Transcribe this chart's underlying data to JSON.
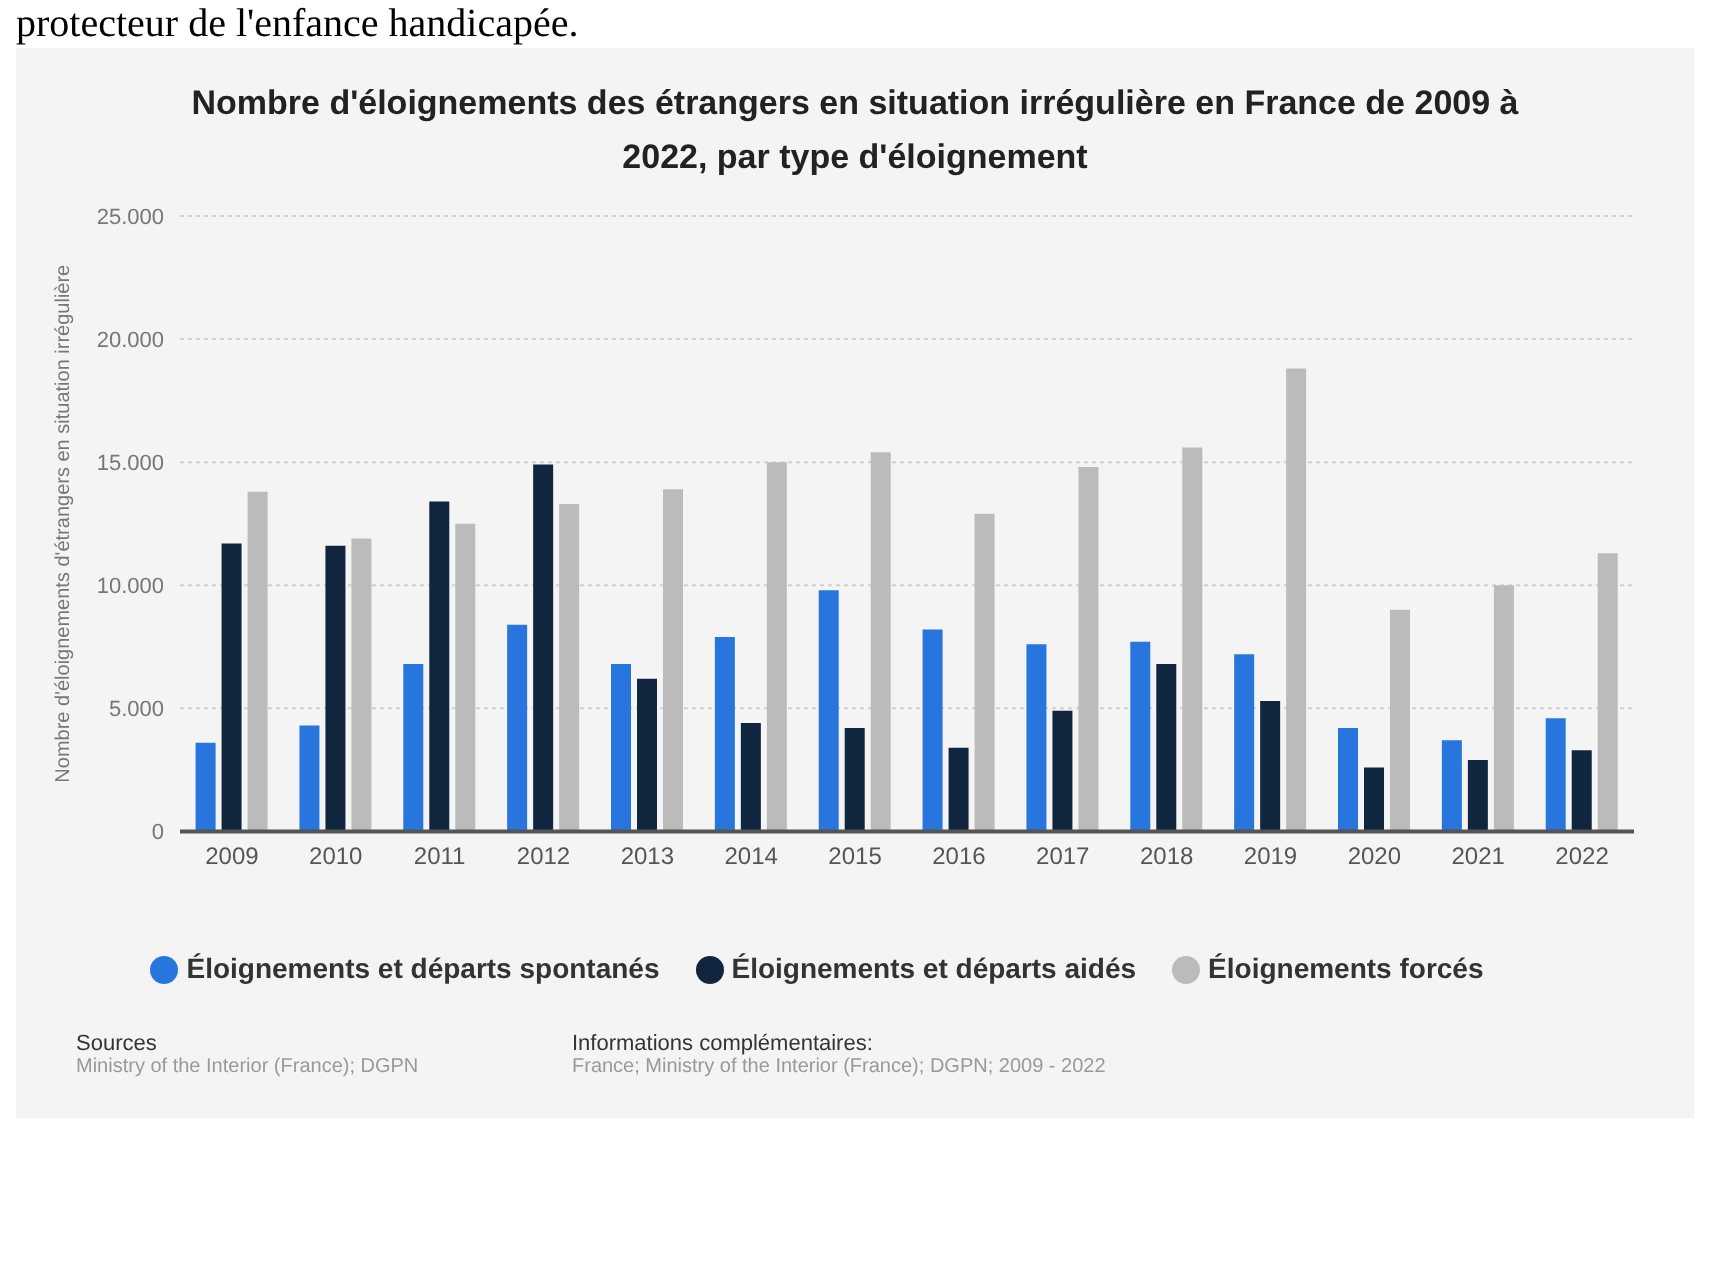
{
  "chart_data": {
    "type": "bar",
    "title": "Nombre d'éloignements des étrangers en situation irrégulière en France de 2009 à 2022, par type d'éloignement",
    "ylabel": "Nombre d'éloignements d'étrangers en situation irrégulière",
    "categories": [
      "2009",
      "2010",
      "2011",
      "2012",
      "2013",
      "2014",
      "2015",
      "2016",
      "2017",
      "2018",
      "2019",
      "2020",
      "2021",
      "2022"
    ],
    "series": [
      {
        "name": "Éloignements et départs spontanés",
        "color": "#2876dd",
        "values": [
          3600,
          4300,
          6800,
          8400,
          6800,
          7900,
          9800,
          8200,
          7600,
          7700,
          7200,
          4200,
          3700,
          4600
        ]
      },
      {
        "name": "Éloignements et départs aidés",
        "color": "#10263e",
        "values": [
          11700,
          11600,
          13400,
          14900,
          6200,
          4400,
          4200,
          3400,
          4900,
          6800,
          5300,
          2600,
          2900,
          3300
        ]
      },
      {
        "name": "Éloignements forcés",
        "color": "#bbbbbb",
        "values": [
          13800,
          11900,
          12500,
          13300,
          13900,
          15000,
          15400,
          12900,
          14800,
          15600,
          18800,
          9000,
          10000,
          11300
        ]
      }
    ],
    "ylim": [
      0,
      25000
    ],
    "yticks": [
      0,
      {
        "value": 5000,
        "label": "5.000"
      },
      {
        "value": 10000,
        "label": "10.000"
      },
      {
        "value": 15000,
        "label": "15.000"
      },
      {
        "value": 20000,
        "label": "20.000"
      },
      {
        "value": 25000,
        "label": "25.000"
      }
    ],
    "grid": "y",
    "legend": "bottom",
    "annotations": [
      "protecteur de l'enfance handicapée.",
      "Sources",
      "Ministry of the Interior (France); DGPN",
      "Informations complémentaires:",
      "France; Ministry of the Interior (France); DGPN; 2009 - 2022"
    ]
  }
}
